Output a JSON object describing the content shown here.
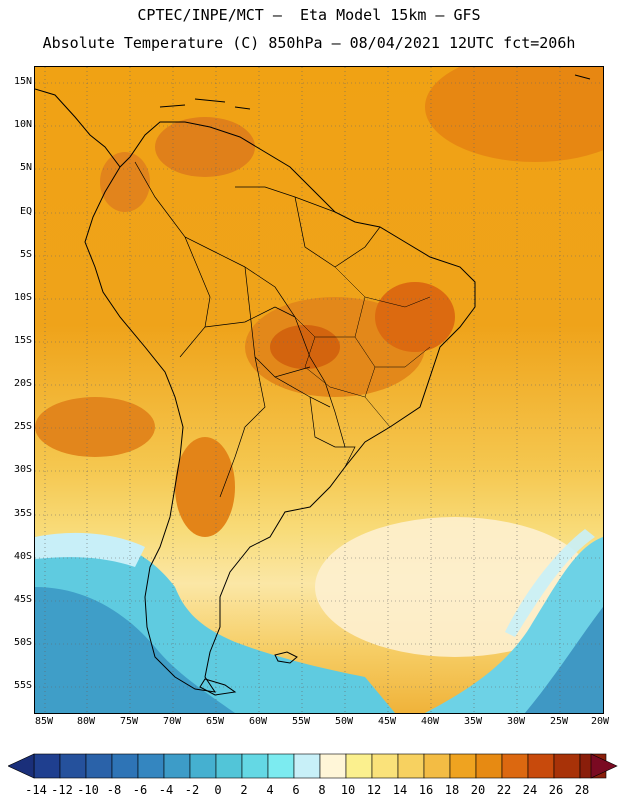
{
  "title_line1": "CPTEC/INPE/MCT –  Eta Model 15km – GFS",
  "title_line2": "Absolute Temperature (C) 850hPa – 08/04/2021 12UTC fct=206h",
  "lat_labels": [
    "15N",
    "10N",
    "5N",
    "EQ",
    "5S",
    "10S",
    "15S",
    "20S",
    "25S",
    "30S",
    "35S",
    "40S",
    "45S",
    "50S",
    "55S"
  ],
  "lon_labels": [
    "85W",
    "80W",
    "75W",
    "70W",
    "65W",
    "60W",
    "55W",
    "50W",
    "45W",
    "40W",
    "35W",
    "30W",
    "25W",
    "20W"
  ],
  "colorbar": {
    "labels": [
      "-14",
      "-12",
      "-10",
      "-8",
      "-6",
      "-4",
      "-2",
      "0",
      "2",
      "4",
      "6",
      "8",
      "10",
      "12",
      "14",
      "16",
      "18",
      "20",
      "22",
      "24",
      "26",
      "28"
    ],
    "colors": [
      "#1f3f8f",
      "#25519c",
      "#2a62a9",
      "#2e74b6",
      "#3486c0",
      "#3d9cc8",
      "#45b0d0",
      "#52c5d8",
      "#64d8e4",
      "#7cebf0",
      "#c8f0f8",
      "#fff6d8",
      "#fbf08e",
      "#fae27a",
      "#f7d160",
      "#f3bc44",
      "#efa320",
      "#e78a12",
      "#dc6810",
      "#c84a0c",
      "#a83208",
      "#8a1e0a"
    ],
    "low_arrow_color": "#1a2f7a",
    "high_arrow_color": "#7a0a22"
  }
}
